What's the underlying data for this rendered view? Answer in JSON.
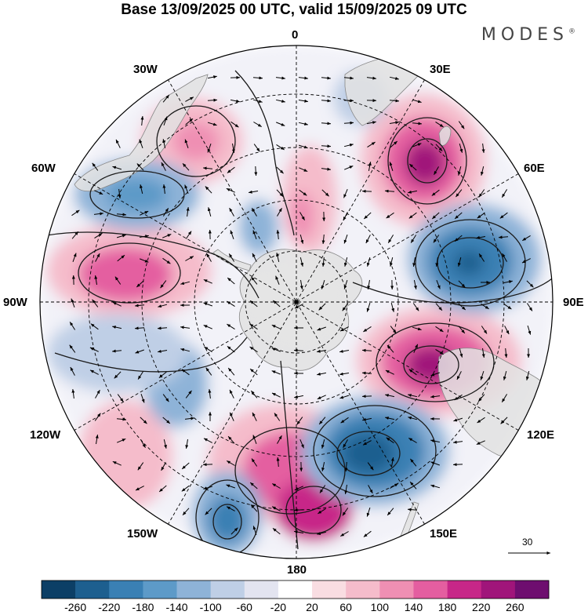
{
  "title": "Base 13/09/2025 00 UTC, valid 15/09/2025 09 UTC",
  "brand": "MODES",
  "brand_mark": "®",
  "longitude_labels": {
    "n0": "0",
    "e30": "30E",
    "e60": "60E",
    "e90": "90E",
    "e120": "120E",
    "e150": "150E",
    "s180": "180",
    "w150": "150W",
    "w120": "120W",
    "w90": "90W",
    "w60": "60W",
    "w30": "30W"
  },
  "reference_vector": {
    "label": "30"
  },
  "colorbar": {
    "labels": [
      "-260",
      "-220",
      "-180",
      "-140",
      "-100",
      "-60",
      "-20",
      "20",
      "60",
      "100",
      "140",
      "180",
      "220",
      "260"
    ],
    "colors": [
      "#0c3f66",
      "#1d5f8f",
      "#3a80b4",
      "#5d9ac8",
      "#8eb3d8",
      "#bfcfe6",
      "#e3e4f0",
      "#ffffff",
      "#f9dde2",
      "#f5bccb",
      "#ef8fb3",
      "#e45ea0",
      "#c72788",
      "#a0157a",
      "#6e0e6f"
    ]
  },
  "colors": {
    "map_background": "#ffffff",
    "land": "#e5e5e5",
    "grid": "#000000"
  }
}
